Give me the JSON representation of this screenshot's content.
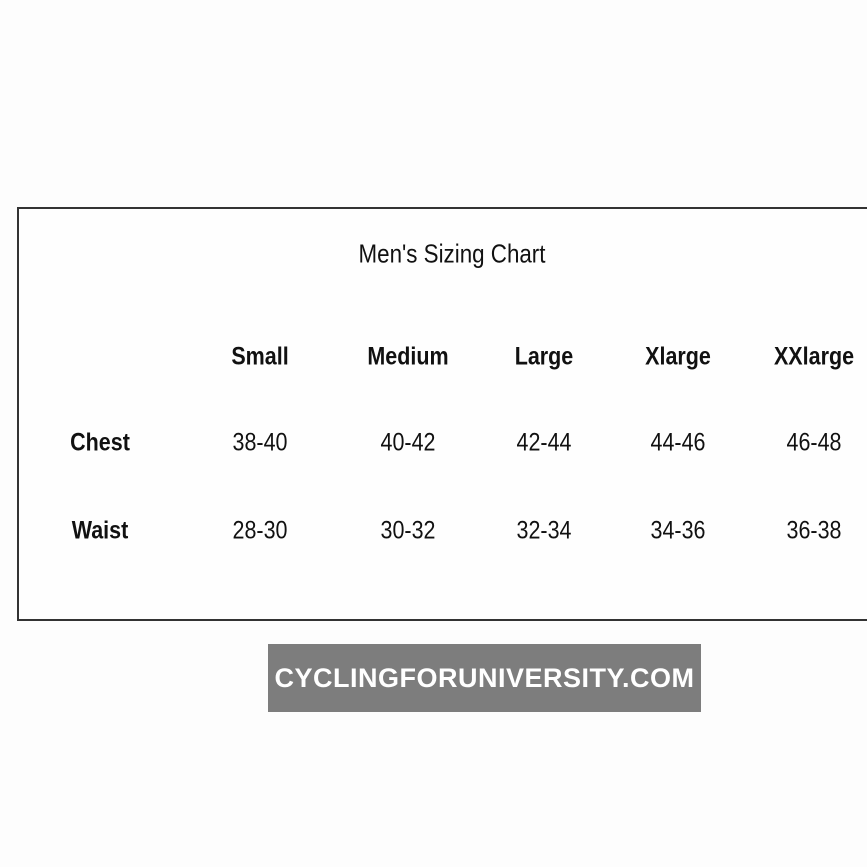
{
  "table": {
    "title": "Men's Sizing Chart",
    "columns": [
      "Small",
      "Medium",
      "Large",
      "Xlarge",
      "XXlarge"
    ],
    "rows": [
      {
        "label": "Chest",
        "cells": [
          "38-40",
          "40-42",
          "42-44",
          "44-46",
          "46-48"
        ]
      },
      {
        "label": "Waist",
        "cells": [
          "28-30",
          "30-32",
          "32-34",
          "34-36",
          "36-38"
        ]
      }
    ]
  },
  "watermark": "CYCLINGFORUNIVERSITY.COM"
}
